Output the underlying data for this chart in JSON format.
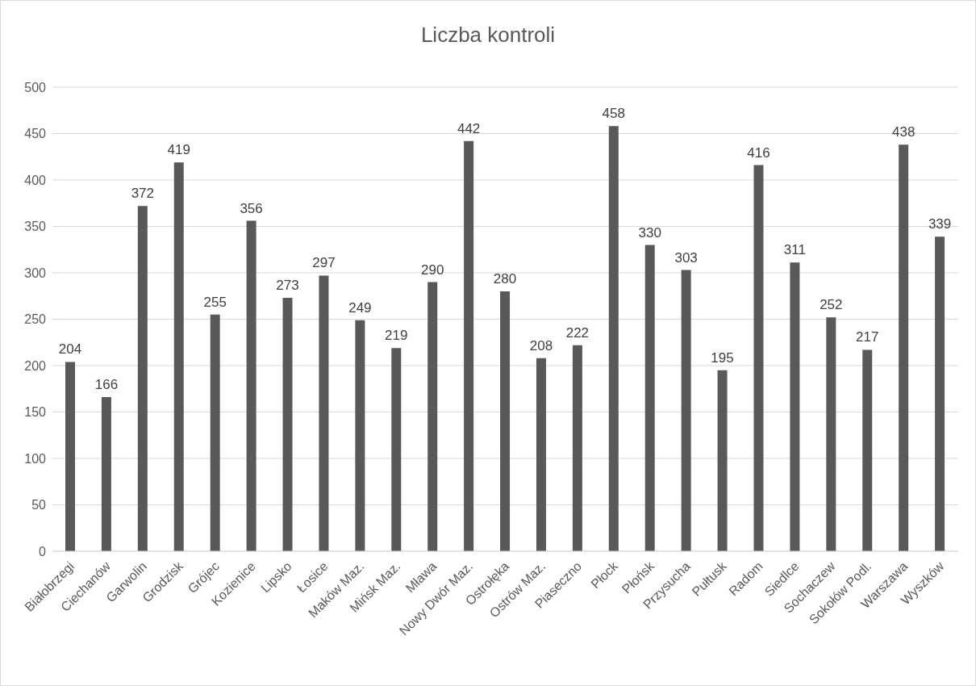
{
  "chart_data": {
    "type": "bar",
    "title": "Liczba kontroli",
    "categories": [
      "Białobrzegi",
      "Ciechanów",
      "Garwolin",
      "Grodzisk",
      "Grójec",
      "Kozienice",
      "Lipsko",
      "Łosice",
      "Maków Maz.",
      "Mińsk Maz.",
      "Mława",
      "Nowy Dwór Maz.",
      "Ostrołęka",
      "Ostrów Maz.",
      "Piaseczno",
      "Płock",
      "Płońsk",
      "Przysucha",
      "Pułtusk",
      "Radom",
      "Siedlce",
      "Sochaczew",
      "Sokołów Podl.",
      "Warszawa",
      "Wyszków"
    ],
    "values": [
      204,
      166,
      372,
      419,
      255,
      356,
      273,
      297,
      249,
      219,
      290,
      442,
      280,
      208,
      222,
      458,
      330,
      303,
      195,
      416,
      311,
      252,
      217,
      438,
      339
    ],
    "color": "#595959",
    "ylim": [
      0,
      500
    ],
    "yticks": [
      0,
      50,
      100,
      150,
      200,
      250,
      300,
      350,
      400,
      450,
      500
    ],
    "grid": "y",
    "data_labels": true
  }
}
